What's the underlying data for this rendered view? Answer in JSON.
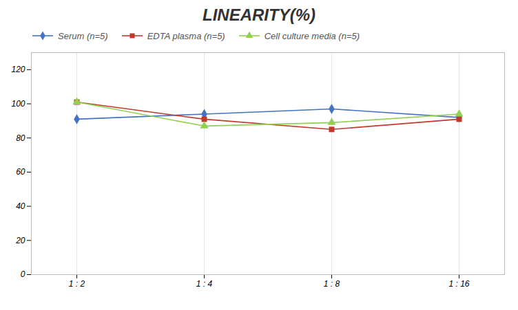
{
  "chart_data": {
    "type": "line",
    "title": "LINEARITY(%)",
    "categories": [
      "1 : 2",
      "1 : 4",
      "1 : 8",
      "1 : 16"
    ],
    "series": [
      {
        "name": "Serum (n=5)",
        "values": [
          91,
          94,
          97,
          92
        ],
        "color": "#4472C4",
        "marker": "diamond"
      },
      {
        "name": "EDTA plasma (n=5)",
        "values": [
          101,
          91,
          85,
          91
        ],
        "color": "#C0392B",
        "marker": "square"
      },
      {
        "name": "Cell culture media (n=5)",
        "values": [
          101,
          87,
          89,
          94
        ],
        "color": "#92D050",
        "marker": "triangle"
      }
    ],
    "ylim": [
      0,
      130
    ],
    "yticks": [
      0,
      20,
      40,
      60,
      80,
      100,
      120
    ],
    "grid": "x",
    "legend": "upper left"
  }
}
